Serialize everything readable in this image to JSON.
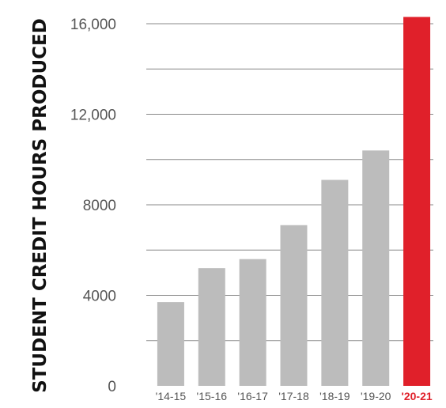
{
  "chart_data": {
    "type": "bar",
    "ylabel": "STUDENT CREDIT HOURS PRODUCED",
    "xlabel": "",
    "categories": [
      "'14-15",
      "'15-16",
      "'16-17",
      "'17-18",
      "'18-19",
      "'19-20",
      "'20-21"
    ],
    "values": [
      3700,
      5200,
      5600,
      7100,
      9100,
      10400,
      16300
    ],
    "highlight_index": 6,
    "ylim": [
      0,
      16000
    ],
    "yticks": [
      0,
      4000,
      8000,
      12000,
      16000
    ],
    "ytick_labels": [
      "0",
      "4000",
      "8000",
      "12,000",
      "16,000"
    ],
    "grid_step": 2000,
    "grid": true,
    "colors": {
      "bar": "#bcbcbc",
      "highlight": "#e0202a",
      "grid": "#888888"
    }
  }
}
